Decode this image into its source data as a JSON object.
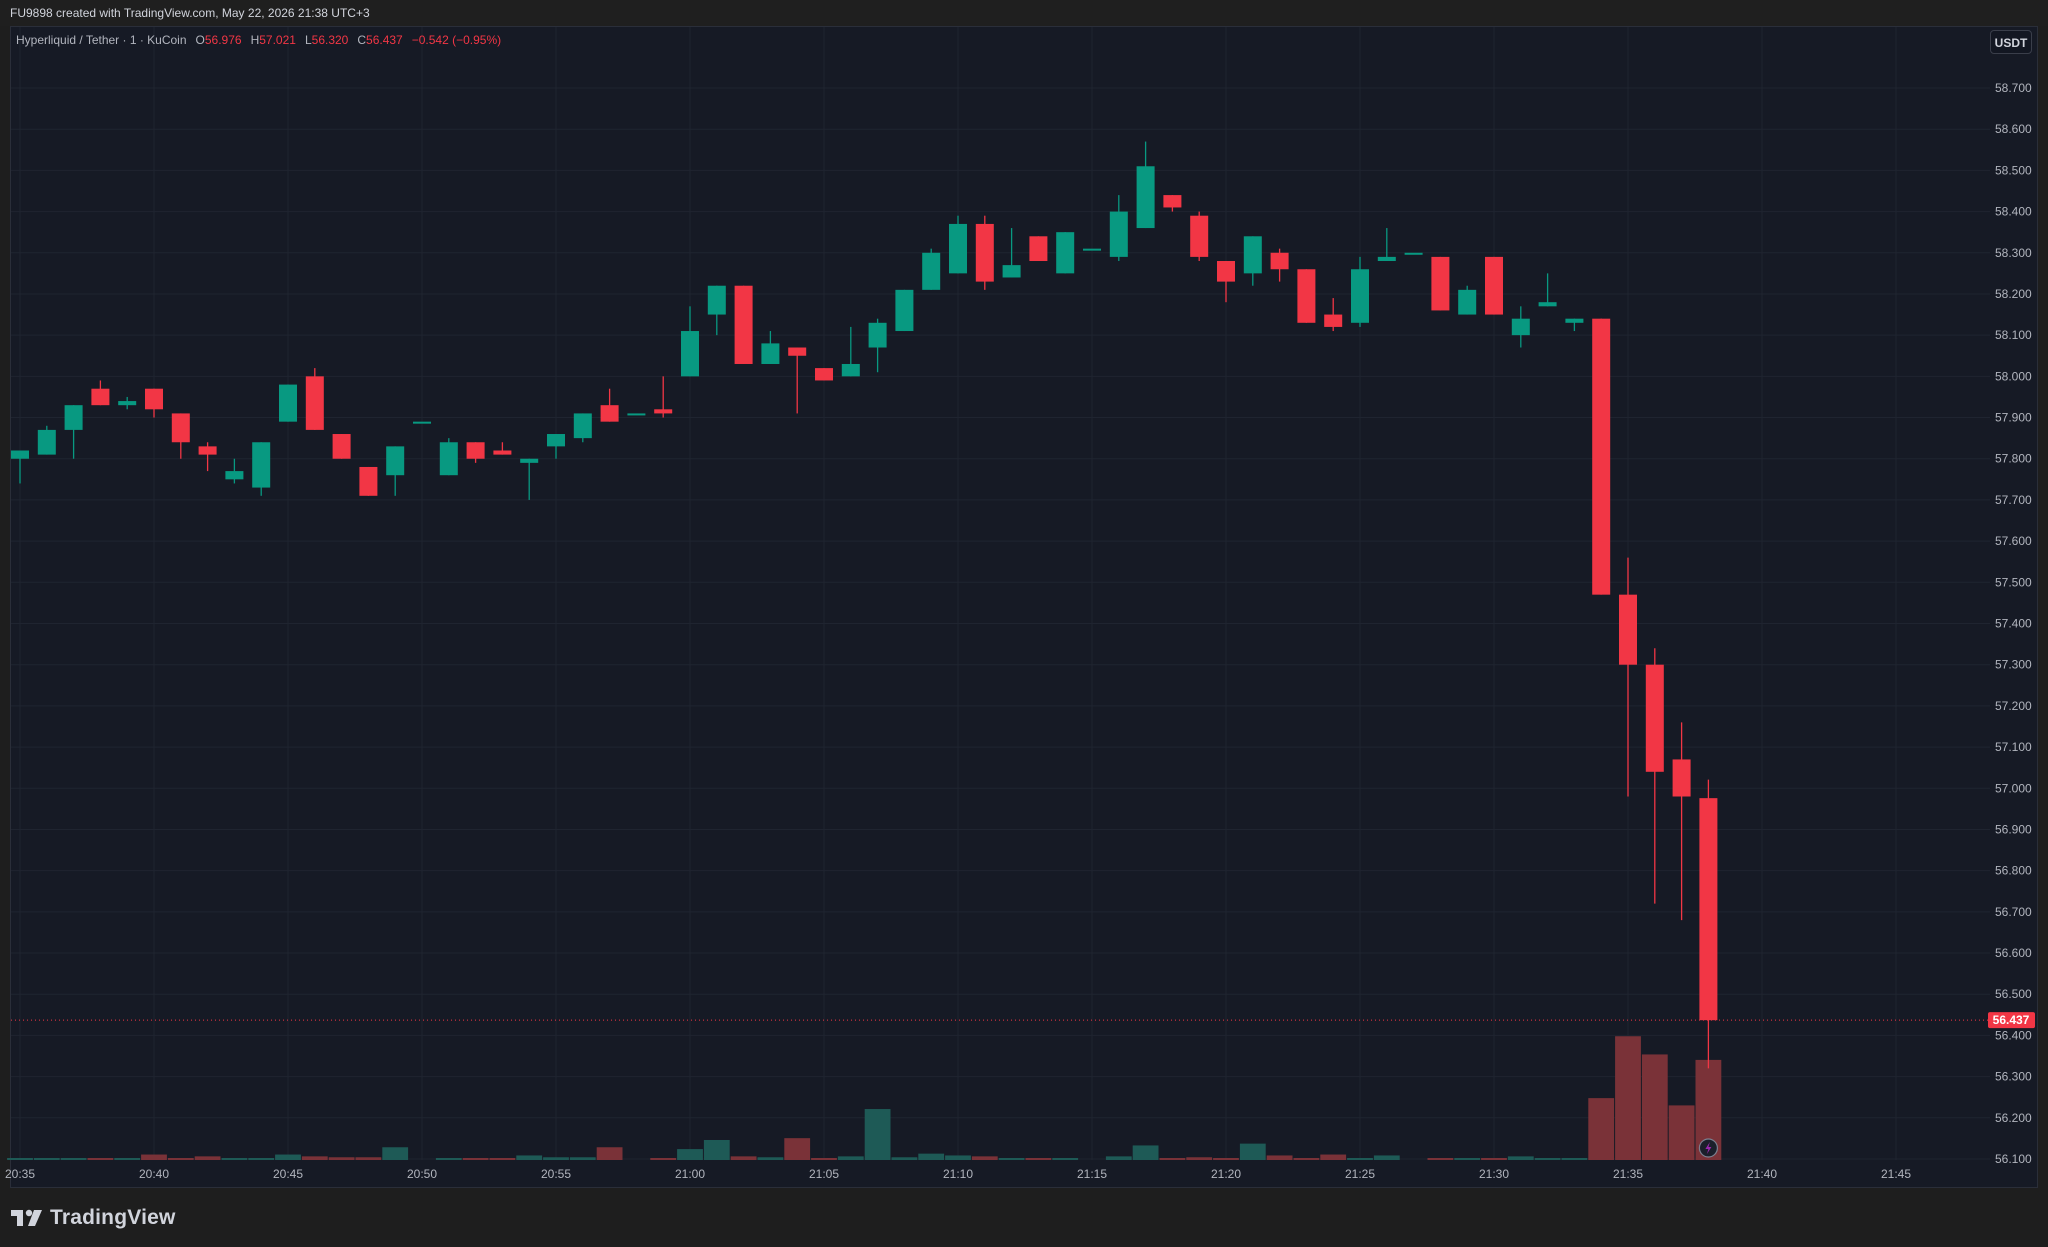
{
  "header": {
    "text": "FU9898 created with TradingView.com, May 22, 2026 21:38 UTC+3"
  },
  "legend": {
    "symbol": "Hyperliquid / Tether · 1 · KuCoin",
    "o_label": "O",
    "o_value": "56.976",
    "h_label": "H",
    "h_value": "57.021",
    "l_label": "L",
    "l_value": "56.320",
    "c_label": "C",
    "c_value": "56.437",
    "change": "−0.542 (−0.95%)"
  },
  "currency_button": "USDT",
  "brand": {
    "name": "TradingView"
  },
  "colors": {
    "up": "#089981",
    "down": "#f23645",
    "up_volume": "#1e5a56",
    "down_volume": "#7a3238",
    "background": "#161a25",
    "grid": "#1f2430",
    "price_line": "#f23645"
  },
  "chart_data": {
    "type": "candlestick",
    "interval": "1",
    "y_axis": {
      "ylim": [
        56.1,
        58.75
      ],
      "ticks": [
        "58.700",
        "58.600",
        "58.500",
        "58.400",
        "58.300",
        "58.200",
        "58.100",
        "58.000",
        "57.900",
        "57.800",
        "57.700",
        "57.600",
        "57.500",
        "57.400",
        "57.300",
        "57.200",
        "57.100",
        "57.000",
        "56.900",
        "56.800",
        "56.700",
        "56.600",
        "56.500",
        "56.400",
        "56.300",
        "56.200",
        "56.100"
      ]
    },
    "x_axis": {
      "ticks": [
        {
          "label": "20:35",
          "minute": 0
        },
        {
          "label": "20:40",
          "minute": 5
        },
        {
          "label": "20:45",
          "minute": 10
        },
        {
          "label": "20:50",
          "minute": 15
        },
        {
          "label": "20:55",
          "minute": 20
        },
        {
          "label": "21:00",
          "minute": 25
        },
        {
          "label": "21:05",
          "minute": 30
        },
        {
          "label": "21:10",
          "minute": 35
        },
        {
          "label": "21:15",
          "minute": 40
        },
        {
          "label": "21:20",
          "minute": 45
        },
        {
          "label": "21:25",
          "minute": 50
        },
        {
          "label": "21:30",
          "minute": 55
        },
        {
          "label": "21:35",
          "minute": 60
        },
        {
          "label": "21:40",
          "minute": 65
        },
        {
          "label": "21:45",
          "minute": 70
        }
      ]
    },
    "last_price": "56.437",
    "candles": [
      {
        "t": "20:35",
        "o": 57.8,
        "h": 57.82,
        "l": 57.74,
        "c": 57.82,
        "v": 1
      },
      {
        "t": "20:36",
        "o": 57.81,
        "h": 57.88,
        "l": 57.81,
        "c": 57.87,
        "v": 1
      },
      {
        "t": "20:37",
        "o": 57.87,
        "h": 57.93,
        "l": 57.8,
        "c": 57.93,
        "v": 1
      },
      {
        "t": "20:38",
        "o": 57.97,
        "h": 57.99,
        "l": 57.93,
        "c": 57.93,
        "v": 0.5
      },
      {
        "t": "20:39",
        "o": 57.93,
        "h": 57.95,
        "l": 57.92,
        "c": 57.94,
        "v": 1
      },
      {
        "t": "20:40",
        "o": 57.97,
        "h": 57.97,
        "l": 57.9,
        "c": 57.92,
        "v": 3
      },
      {
        "t": "20:41",
        "o": 57.91,
        "h": 57.91,
        "l": 57.8,
        "c": 57.84,
        "v": 1
      },
      {
        "t": "20:42",
        "o": 57.83,
        "h": 57.84,
        "l": 57.77,
        "c": 57.81,
        "v": 2
      },
      {
        "t": "20:43",
        "o": 57.75,
        "h": 57.8,
        "l": 57.74,
        "c": 57.77,
        "v": 0.5
      },
      {
        "t": "20:44",
        "o": 57.73,
        "h": 57.84,
        "l": 57.71,
        "c": 57.84,
        "v": 0.5
      },
      {
        "t": "20:45",
        "o": 57.89,
        "h": 57.98,
        "l": 57.89,
        "c": 57.98,
        "v": 3
      },
      {
        "t": "20:46",
        "o": 58.0,
        "h": 58.02,
        "l": 57.87,
        "c": 57.87,
        "v": 2
      },
      {
        "t": "20:47",
        "o": 57.86,
        "h": 57.86,
        "l": 57.8,
        "c": 57.8,
        "v": 1.5
      },
      {
        "t": "20:48",
        "o": 57.78,
        "h": 57.78,
        "l": 57.71,
        "c": 57.71,
        "v": 1.5
      },
      {
        "t": "20:49",
        "o": 57.76,
        "h": 57.83,
        "l": 57.71,
        "c": 57.83,
        "v": 7
      },
      {
        "t": "20:50",
        "o": 57.89,
        "h": 57.89,
        "l": 57.89,
        "c": 57.89,
        "v": 0
      },
      {
        "t": "20:51",
        "o": 57.76,
        "h": 57.85,
        "l": 57.76,
        "c": 57.84,
        "v": 1
      },
      {
        "t": "20:52",
        "o": 57.84,
        "h": 57.84,
        "l": 57.79,
        "c": 57.8,
        "v": 0.5
      },
      {
        "t": "20:53",
        "o": 57.82,
        "h": 57.84,
        "l": 57.81,
        "c": 57.81,
        "v": 0.5
      },
      {
        "t": "20:54",
        "o": 57.79,
        "h": 57.8,
        "l": 57.7,
        "c": 57.8,
        "v": 2.5
      },
      {
        "t": "20:55",
        "o": 57.83,
        "h": 57.86,
        "l": 57.8,
        "c": 57.86,
        "v": 1.5
      },
      {
        "t": "20:56",
        "o": 57.85,
        "h": 57.91,
        "l": 57.84,
        "c": 57.91,
        "v": 1.5
      },
      {
        "t": "20:57",
        "o": 57.93,
        "h": 57.97,
        "l": 57.89,
        "c": 57.89,
        "v": 7
      },
      {
        "t": "20:58",
        "o": 57.91,
        "h": 57.91,
        "l": 57.91,
        "c": 57.91,
        "v": 0
      },
      {
        "t": "20:59",
        "o": 57.92,
        "h": 58.0,
        "l": 57.9,
        "c": 57.91,
        "v": 0.5
      },
      {
        "t": "21:00",
        "o": 58.0,
        "h": 58.17,
        "l": 58.0,
        "c": 58.11,
        "v": 6
      },
      {
        "t": "21:01",
        "o": 58.15,
        "h": 58.22,
        "l": 58.1,
        "c": 58.22,
        "v": 11
      },
      {
        "t": "21:02",
        "o": 58.22,
        "h": 58.22,
        "l": 58.03,
        "c": 58.03,
        "v": 2
      },
      {
        "t": "21:03",
        "o": 58.03,
        "h": 58.11,
        "l": 58.03,
        "c": 58.08,
        "v": 1.5
      },
      {
        "t": "21:04",
        "o": 58.07,
        "h": 58.07,
        "l": 57.91,
        "c": 58.05,
        "v": 12
      },
      {
        "t": "21:05",
        "o": 58.02,
        "h": 58.02,
        "l": 57.99,
        "c": 57.99,
        "v": 0.5
      },
      {
        "t": "21:06",
        "o": 58.0,
        "h": 58.12,
        "l": 58.0,
        "c": 58.03,
        "v": 2
      },
      {
        "t": "21:07",
        "o": 58.07,
        "h": 58.14,
        "l": 58.01,
        "c": 58.13,
        "v": 28
      },
      {
        "t": "21:08",
        "o": 58.11,
        "h": 58.21,
        "l": 58.11,
        "c": 58.21,
        "v": 1.5
      },
      {
        "t": "21:09",
        "o": 58.21,
        "h": 58.31,
        "l": 58.21,
        "c": 58.3,
        "v": 3.5
      },
      {
        "t": "21:10",
        "o": 58.25,
        "h": 58.39,
        "l": 58.25,
        "c": 58.37,
        "v": 2.5
      },
      {
        "t": "21:11",
        "o": 58.37,
        "h": 58.39,
        "l": 58.21,
        "c": 58.23,
        "v": 2
      },
      {
        "t": "21:12",
        "o": 58.24,
        "h": 58.36,
        "l": 58.24,
        "c": 58.27,
        "v": 1
      },
      {
        "t": "21:13",
        "o": 58.34,
        "h": 58.34,
        "l": 58.28,
        "c": 58.28,
        "v": 0.5
      },
      {
        "t": "21:14",
        "o": 58.25,
        "h": 58.35,
        "l": 58.25,
        "c": 58.35,
        "v": 0.5
      },
      {
        "t": "21:15",
        "o": 58.31,
        "h": 58.31,
        "l": 58.31,
        "c": 58.31,
        "v": 0
      },
      {
        "t": "21:16",
        "o": 58.29,
        "h": 58.44,
        "l": 58.28,
        "c": 58.4,
        "v": 2
      },
      {
        "t": "21:17",
        "o": 58.36,
        "h": 58.57,
        "l": 58.36,
        "c": 58.51,
        "v": 8
      },
      {
        "t": "21:18",
        "o": 58.44,
        "h": 58.44,
        "l": 58.4,
        "c": 58.41,
        "v": 0.5
      },
      {
        "t": "21:19",
        "o": 58.39,
        "h": 58.4,
        "l": 58.28,
        "c": 58.29,
        "v": 1.5
      },
      {
        "t": "21:20",
        "o": 58.28,
        "h": 58.28,
        "l": 58.18,
        "c": 58.23,
        "v": 1
      },
      {
        "t": "21:21",
        "o": 58.25,
        "h": 58.34,
        "l": 58.22,
        "c": 58.34,
        "v": 9
      },
      {
        "t": "21:22",
        "o": 58.3,
        "h": 58.31,
        "l": 58.23,
        "c": 58.26,
        "v": 2.5
      },
      {
        "t": "21:23",
        "o": 58.26,
        "h": 58.26,
        "l": 58.13,
        "c": 58.13,
        "v": 0.5
      },
      {
        "t": "21:24",
        "o": 58.15,
        "h": 58.19,
        "l": 58.11,
        "c": 58.12,
        "v": 3
      },
      {
        "t": "21:25",
        "o": 58.13,
        "h": 58.29,
        "l": 58.12,
        "c": 58.26,
        "v": 0.5
      },
      {
        "t": "21:26",
        "o": 58.28,
        "h": 58.36,
        "l": 58.28,
        "c": 58.29,
        "v": 2.5
      },
      {
        "t": "21:27",
        "o": 58.3,
        "h": 58.3,
        "l": 58.3,
        "c": 58.3,
        "v": 0
      },
      {
        "t": "21:28",
        "o": 58.29,
        "h": 58.29,
        "l": 58.16,
        "c": 58.16,
        "v": 0.5
      },
      {
        "t": "21:29",
        "o": 58.15,
        "h": 58.22,
        "l": 58.15,
        "c": 58.21,
        "v": 1
      },
      {
        "t": "21:30",
        "o": 58.29,
        "h": 58.29,
        "l": 58.15,
        "c": 58.15,
        "v": 0.5
      },
      {
        "t": "21:31",
        "o": 58.1,
        "h": 58.17,
        "l": 58.07,
        "c": 58.14,
        "v": 2
      },
      {
        "t": "21:32",
        "o": 58.17,
        "h": 58.25,
        "l": 58.17,
        "c": 58.18,
        "v": 1
      },
      {
        "t": "21:33",
        "o": 58.13,
        "h": 58.14,
        "l": 58.11,
        "c": 58.14,
        "v": 0.3
      },
      {
        "t": "21:34",
        "o": 58.14,
        "h": 58.14,
        "l": 57.47,
        "c": 57.47,
        "v": 34
      },
      {
        "t": "21:35",
        "o": 57.47,
        "h": 57.56,
        "l": 56.98,
        "c": 57.3,
        "v": 68
      },
      {
        "t": "21:36",
        "o": 57.3,
        "h": 57.34,
        "l": 56.72,
        "c": 57.04,
        "v": 58
      },
      {
        "t": "21:37",
        "o": 57.07,
        "h": 57.16,
        "l": 56.68,
        "c": 56.98,
        "v": 30
      },
      {
        "t": "21:38",
        "o": 56.976,
        "h": 57.021,
        "l": 56.32,
        "c": 56.437,
        "v": 55
      }
    ]
  }
}
